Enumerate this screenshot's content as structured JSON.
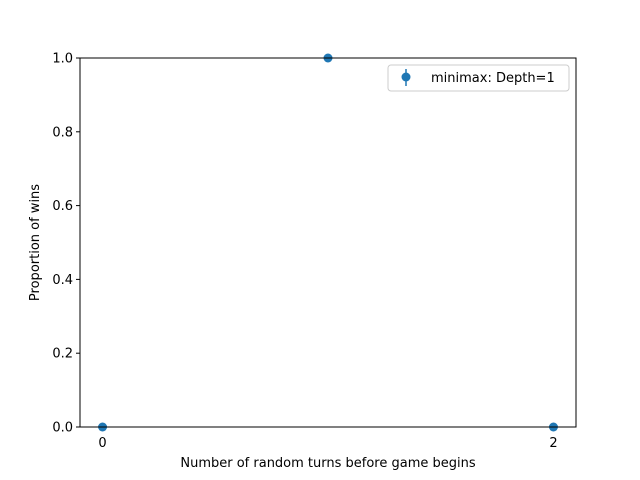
{
  "chart_data": {
    "type": "scatter",
    "title": "",
    "xlabel": "Number of random turns before game begins",
    "ylabel": "Proportion of wins",
    "xlim": [
      -0.1,
      2.1
    ],
    "ylim": [
      0.0,
      1.0
    ],
    "x_ticks": [
      0,
      2
    ],
    "x_tick_labels": [
      "0",
      "2"
    ],
    "y_ticks": [
      0.0,
      0.2,
      0.4,
      0.6,
      0.8,
      1.0
    ],
    "y_tick_labels": [
      "0.0",
      "0.2",
      "0.4",
      "0.6",
      "0.8",
      "1.0"
    ],
    "grid": false,
    "legend_position": "top-right",
    "series": [
      {
        "name": "minimax: Depth=1",
        "color": "#1f77b4",
        "marker": "circle-with-errorbar",
        "x": [
          0,
          1,
          2
        ],
        "y": [
          0.0,
          1.0,
          0.0
        ]
      }
    ]
  }
}
